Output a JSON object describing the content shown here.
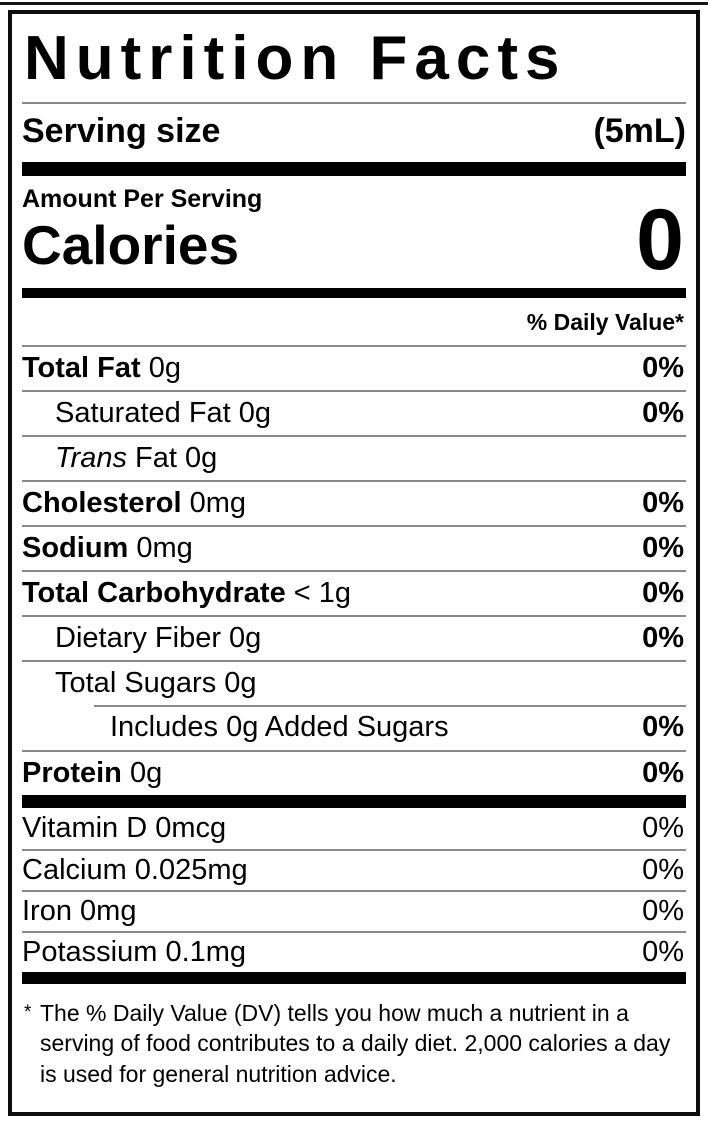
{
  "label": {
    "title": "Nutrition Facts",
    "serving": {
      "label": "Serving size",
      "value": "(5mL)"
    },
    "amount_per_serving": "Amount Per Serving",
    "calories": {
      "label": "Calories",
      "value": "0"
    },
    "daily_value_header": "% Daily Value*",
    "nutrients": [
      {
        "bold": "Total Fat",
        "rest": " 0g",
        "dv": "0%"
      },
      {
        "rest": "Saturated Fat 0g",
        "dv": "0%"
      },
      {
        "italic": "Trans",
        "rest": " Fat 0g",
        "dv": ""
      },
      {
        "bold": "Cholesterol",
        "rest": " 0mg",
        "dv": "0%"
      },
      {
        "bold": "Sodium",
        "rest": " 0mg",
        "dv": "0%"
      },
      {
        "bold": "Total Carbohydrate",
        "rest": " < 1g",
        "dv": "0%"
      },
      {
        "rest": "Dietary Fiber 0g",
        "dv": "0%"
      },
      {
        "rest": "Total Sugars 0g",
        "dv": ""
      },
      {
        "rest": "Includes 0g Added Sugars",
        "dv": "0%"
      },
      {
        "bold": "Protein",
        "rest": " 0g",
        "dv": "0%"
      }
    ],
    "vitamins": [
      {
        "rest": "Vitamin D 0mcg",
        "dv": "0%"
      },
      {
        "rest": "Calcium 0.025mg",
        "dv": "0%"
      },
      {
        "rest": "Iron 0mg",
        "dv": "0%"
      },
      {
        "rest": "Potassium 0.1mg",
        "dv": "0%"
      }
    ],
    "footnote": {
      "asterisk": "*",
      "text": "The % Daily Value (DV) tells you how much a nutrient in a serving of food contributes to a daily diet. 2,000 calories a day is used for general nutrition advice."
    }
  },
  "colors": {
    "text": "#000000",
    "background": "#ffffff",
    "bar": "#000000",
    "hairline": "#8a8a8a"
  }
}
